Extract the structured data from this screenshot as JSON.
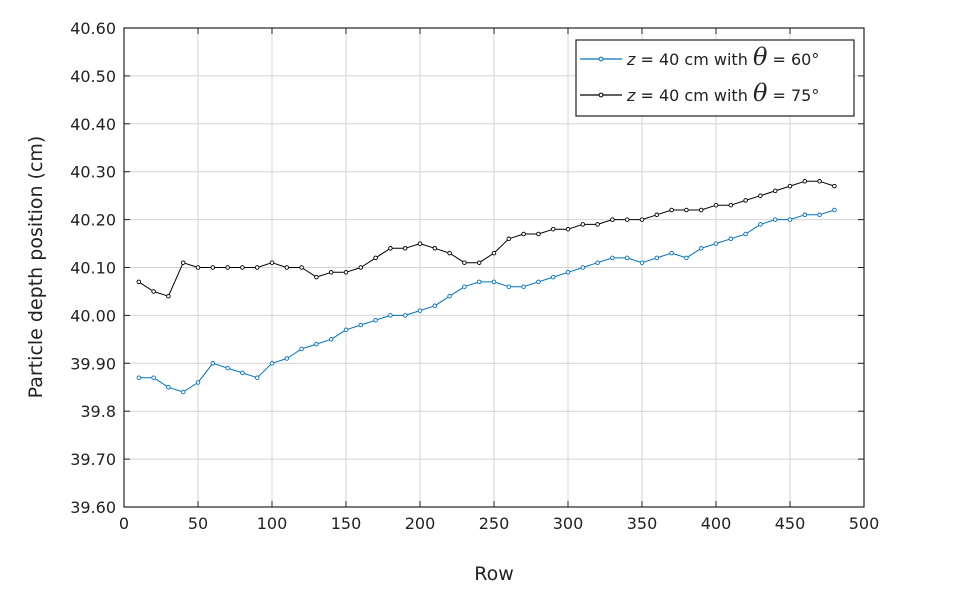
{
  "chart_data": {
    "type": "line",
    "xlabel": "Row",
    "ylabel": "Particle depth position (cm)",
    "xlim": [
      0,
      500
    ],
    "ylim": [
      39.6,
      40.6
    ],
    "x_ticks": [
      0,
      50,
      100,
      150,
      200,
      250,
      300,
      350,
      400,
      450,
      500
    ],
    "x_tick_labels": [
      "0",
      "50",
      "100",
      "150",
      "200",
      "250",
      "300",
      "350",
      "400",
      "450",
      "500"
    ],
    "y_ticks": [
      39.6,
      39.7,
      39.8,
      39.9,
      40.0,
      40.1,
      40.2,
      40.3,
      40.4,
      40.5,
      40.6
    ],
    "y_tick_labels": [
      "39.60",
      "39.70",
      "39.8",
      "39.90",
      "40.00",
      "40.10",
      "40.20",
      "40.30",
      "40.40",
      "40.50",
      "40.60"
    ],
    "grid": true,
    "legend_position": "top-right",
    "series": [
      {
        "name": "z = 40 cm with θ = 60°",
        "legend_parts": {
          "var": "z",
          "mid": " = 40 cm with ",
          "sym": "θ",
          "end": " = 60°"
        },
        "color": "#0072BD",
        "x": [
          10,
          20,
          30,
          40,
          50,
          60,
          70,
          80,
          90,
          100,
          110,
          120,
          130,
          140,
          150,
          160,
          170,
          180,
          190,
          200,
          210,
          220,
          230,
          240,
          250,
          260,
          270,
          280,
          290,
          300,
          310,
          320,
          330,
          340,
          350,
          360,
          370,
          380,
          390,
          400,
          410,
          420,
          430,
          440,
          450,
          460,
          470,
          480
        ],
        "y": [
          39.87,
          39.87,
          39.85,
          39.84,
          39.86,
          39.9,
          39.89,
          39.88,
          39.87,
          39.9,
          39.91,
          39.93,
          39.94,
          39.95,
          39.97,
          39.98,
          39.99,
          40.0,
          40.0,
          40.01,
          40.02,
          40.04,
          40.06,
          40.07,
          40.07,
          40.06,
          40.06,
          40.07,
          40.08,
          40.09,
          40.1,
          40.11,
          40.12,
          40.12,
          40.11,
          40.12,
          40.13,
          40.12,
          40.14,
          40.15,
          40.16,
          40.17,
          40.19,
          40.2,
          40.2,
          40.21,
          40.21,
          40.22
        ]
      },
      {
        "name": "z = 40 cm with θ = 75°",
        "legend_parts": {
          "var": "z",
          "mid": " = 40 cm with ",
          "sym": "θ",
          "end": " = 75°"
        },
        "color": "#000000",
        "x": [
          10,
          20,
          30,
          40,
          50,
          60,
          70,
          80,
          90,
          100,
          110,
          120,
          130,
          140,
          150,
          160,
          170,
          180,
          190,
          200,
          210,
          220,
          230,
          240,
          250,
          260,
          270,
          280,
          290,
          300,
          310,
          320,
          330,
          340,
          350,
          360,
          370,
          380,
          390,
          400,
          410,
          420,
          430,
          440,
          450,
          460,
          470,
          480
        ],
        "y": [
          40.07,
          40.05,
          40.04,
          40.11,
          40.1,
          40.1,
          40.1,
          40.1,
          40.1,
          40.11,
          40.1,
          40.1,
          40.08,
          40.09,
          40.09,
          40.1,
          40.12,
          40.14,
          40.14,
          40.15,
          40.14,
          40.13,
          40.11,
          40.11,
          40.13,
          40.16,
          40.17,
          40.17,
          40.18,
          40.18,
          40.19,
          40.19,
          40.2,
          40.2,
          40.2,
          40.21,
          40.22,
          40.22,
          40.22,
          40.23,
          40.23,
          40.24,
          40.25,
          40.26,
          40.27,
          40.28,
          40.28,
          40.27
        ]
      }
    ]
  }
}
